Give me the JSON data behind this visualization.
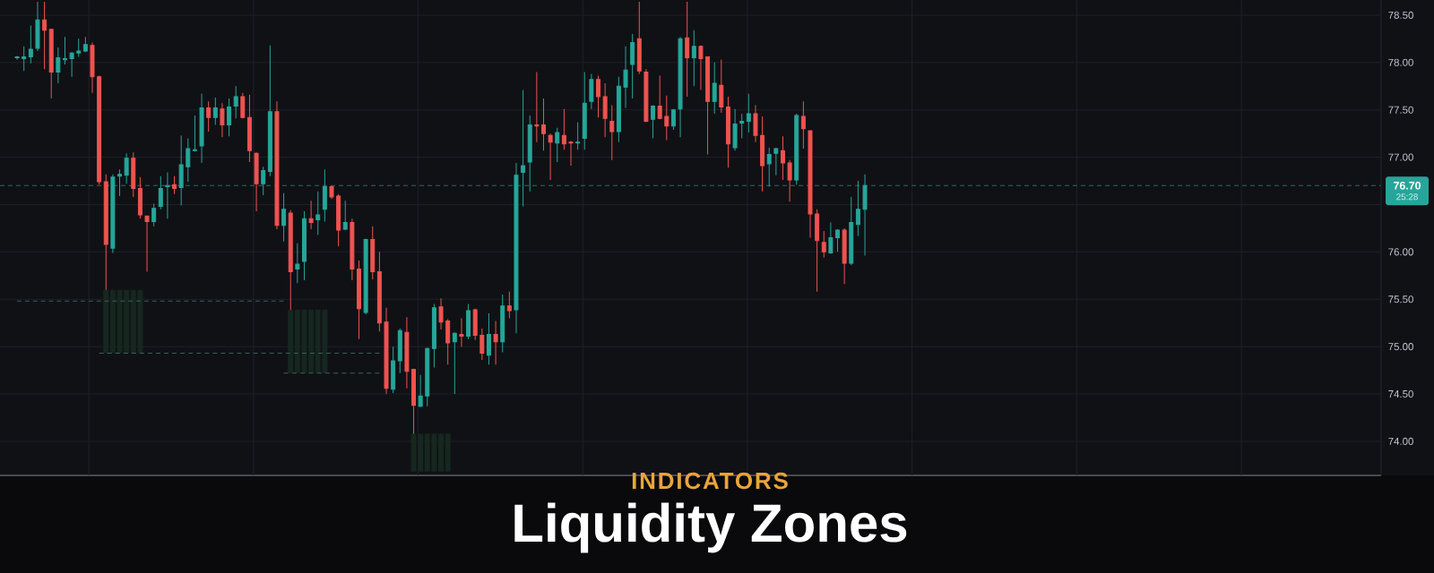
{
  "chart_data": {
    "type": "candlestick",
    "title": "Liquidity Zones",
    "subtitle": "INDICATORS",
    "categories": [
      null,
      null,
      null,
      null,
      null,
      null,
      null,
      null,
      null,
      null,
      null,
      null,
      null,
      null,
      null,
      null,
      null,
      null,
      null,
      null,
      null,
      null,
      null,
      null,
      null,
      null,
      null,
      null,
      null,
      null,
      null,
      null,
      null,
      null,
      null,
      null,
      null,
      null,
      null,
      null,
      null,
      null,
      null,
      null,
      null,
      null,
      null,
      null,
      null,
      null,
      null,
      null,
      null,
      null,
      null,
      null,
      null,
      null,
      null,
      null,
      null,
      null,
      null,
      null,
      null,
      null,
      null,
      null,
      null,
      null,
      null,
      null,
      null,
      null,
      null,
      null,
      null,
      null,
      null,
      null,
      null,
      null,
      null,
      null,
      null,
      null,
      null,
      null,
      null,
      null,
      null,
      null,
      null,
      null,
      null,
      null,
      null,
      null,
      null,
      null,
      null,
      null,
      null,
      null,
      null,
      null,
      null,
      null,
      null,
      null,
      null,
      null,
      null,
      null,
      null,
      null,
      null,
      null,
      null,
      null,
      null,
      null,
      null,
      null,
      null,
      null,
      null,
      null,
      null,
      null,
      null,
      null,
      null,
      null,
      null,
      null,
      null,
      null,
      null,
      null,
      null,
      null,
      null,
      null,
      null,
      null,
      null,
      null,
      null,
      null,
      null,
      null,
      null,
      null,
      null,
      null,
      null,
      null,
      null,
      null,
      null,
      null,
      null,
      null,
      null,
      null,
      null,
      null,
      null,
      null,
      null,
      null,
      null,
      null,
      null,
      null,
      null,
      null,
      null,
      null,
      null,
      null,
      null,
      null,
      null,
      null,
      null,
      null,
      null,
      null,
      null,
      null,
      null,
      null,
      null,
      null,
      null,
      null,
      null,
      null,
      null,
      null
    ],
    "ohlc": [
      null,
      null,
      [
        78.05,
        78.07,
        78.03,
        78.06
      ],
      [
        78.04,
        78.17,
        77.91,
        78.06
      ],
      [
        78.06,
        78.39,
        77.99,
        78.14
      ],
      [
        78.15,
        78.64,
        78.12,
        78.45
      ],
      [
        78.45,
        78.64,
        77.93,
        78.34
      ],
      [
        78.35,
        78.35,
        77.62,
        77.9
      ],
      [
        77.9,
        78.16,
        77.78,
        78.05
      ],
      [
        78.03,
        78.27,
        77.98,
        78.04
      ],
      [
        78.04,
        78.11,
        77.85,
        78.1
      ],
      [
        78.1,
        78.25,
        78.06,
        78.12
      ],
      [
        78.12,
        78.27,
        78.11,
        78.19
      ],
      [
        78.18,
        78.21,
        77.68,
        77.85
      ],
      [
        77.85,
        77.86,
        76.71,
        76.74
      ],
      [
        76.74,
        76.82,
        75.6,
        76.08
      ],
      [
        76.04,
        76.82,
        75.99,
        76.79
      ],
      [
        76.8,
        76.87,
        76.59,
        76.82
      ],
      [
        76.81,
        77.04,
        76.72,
        76.99
      ],
      [
        76.99,
        77.05,
        76.58,
        76.67
      ],
      [
        76.67,
        76.79,
        76.35,
        76.39
      ],
      [
        76.38,
        76.38,
        75.79,
        76.32
      ],
      [
        76.32,
        76.51,
        76.27,
        76.46
      ],
      [
        76.48,
        76.8,
        76.45,
        76.67
      ],
      [
        76.69,
        76.84,
        76.35,
        76.7
      ],
      [
        76.71,
        76.8,
        76.61,
        76.67
      ],
      [
        76.68,
        77.23,
        76.49,
        76.92
      ],
      [
        76.9,
        77.2,
        76.74,
        77.09
      ],
      [
        77.07,
        77.44,
        77.06,
        77.08
      ],
      [
        77.12,
        77.67,
        76.94,
        77.52
      ],
      [
        77.52,
        77.59,
        77.27,
        77.42
      ],
      [
        77.42,
        77.63,
        77.34,
        77.52
      ],
      [
        77.51,
        77.57,
        77.21,
        77.34
      ],
      [
        77.34,
        77.62,
        77.22,
        77.53
      ],
      [
        77.54,
        77.75,
        77.41,
        77.64
      ],
      [
        77.64,
        77.68,
        77.41,
        77.42
      ],
      [
        77.42,
        77.66,
        76.95,
        77.07
      ],
      [
        77.04,
        77.05,
        76.43,
        76.72
      ],
      [
        76.72,
        76.9,
        76.6,
        76.86
      ],
      [
        76.85,
        78.18,
        76.8,
        77.48
      ],
      [
        77.48,
        77.59,
        76.24,
        76.28
      ],
      [
        76.28,
        76.62,
        76.11,
        76.45
      ],
      [
        76.41,
        76.44,
        75.39,
        75.79
      ],
      [
        75.82,
        76.09,
        75.67,
        75.87
      ],
      [
        75.9,
        76.43,
        75.7,
        76.35
      ],
      [
        76.35,
        76.54,
        76.24,
        76.31
      ],
      [
        76.34,
        76.64,
        76.18,
        76.39
      ],
      [
        76.45,
        76.87,
        76.32,
        76.69
      ],
      [
        76.69,
        76.7,
        76.56,
        76.58
      ],
      [
        76.59,
        76.61,
        76.06,
        76.23
      ],
      [
        76.24,
        76.54,
        76.23,
        76.31
      ],
      [
        76.31,
        76.35,
        75.7,
        75.82
      ],
      [
        75.82,
        75.91,
        75.08,
        75.4
      ],
      [
        75.36,
        76.14,
        75.34,
        76.13
      ],
      [
        76.13,
        76.27,
        75.71,
        75.79
      ],
      [
        75.79,
        76.0,
        75.16,
        75.25
      ],
      [
        75.26,
        75.41,
        74.5,
        74.56
      ],
      [
        74.55,
        75.0,
        74.51,
        74.85
      ],
      [
        74.85,
        75.19,
        74.72,
        75.17
      ],
      [
        75.15,
        75.31,
        74.56,
        74.74
      ],
      [
        74.76,
        74.76,
        74.08,
        74.38
      ],
      [
        74.37,
        74.7,
        74.36,
        74.48
      ],
      [
        74.48,
        74.99,
        74.37,
        74.98
      ],
      [
        74.98,
        75.45,
        74.78,
        75.41
      ],
      [
        75.42,
        75.51,
        75.18,
        75.26
      ],
      [
        75.27,
        75.29,
        74.81,
        75.04
      ],
      [
        75.05,
        75.15,
        74.5,
        75.14
      ],
      [
        75.13,
        75.3,
        75.0,
        75.11
      ],
      [
        75.11,
        75.45,
        75.08,
        75.38
      ],
      [
        75.39,
        75.4,
        75.07,
        75.12
      ],
      [
        75.12,
        75.19,
        74.86,
        74.93
      ],
      [
        74.91,
        75.35,
        74.81,
        75.13
      ],
      [
        75.13,
        75.27,
        74.81,
        75.05
      ],
      [
        75.05,
        75.55,
        74.94,
        75.43
      ],
      [
        75.43,
        75.58,
        75.3,
        75.38
      ],
      [
        75.39,
        76.94,
        75.14,
        76.81
      ],
      [
        76.84,
        77.71,
        76.48,
        76.91
      ],
      [
        76.95,
        77.44,
        76.64,
        77.34
      ],
      [
        77.34,
        77.9,
        77.16,
        77.33
      ],
      [
        77.34,
        77.62,
        77.07,
        77.25
      ],
      [
        77.23,
        77.25,
        76.76,
        77.16
      ],
      [
        77.15,
        77.31,
        76.95,
        77.26
      ],
      [
        77.23,
        77.51,
        77.08,
        77.14
      ],
      [
        77.16,
        77.17,
        76.91,
        77.15
      ],
      [
        77.15,
        77.37,
        77.08,
        77.16
      ],
      [
        77.2,
        77.9,
        77.08,
        77.57
      ],
      [
        77.59,
        77.88,
        77.51,
        77.82
      ],
      [
        77.82,
        77.86,
        77.42,
        77.64
      ],
      [
        77.64,
        77.78,
        77.21,
        77.41
      ],
      [
        77.38,
        77.55,
        76.97,
        77.27
      ],
      [
        77.27,
        77.85,
        77.16,
        77.75
      ],
      [
        77.74,
        78.17,
        77.52,
        77.92
      ],
      [
        77.98,
        78.3,
        77.62,
        78.21
      ],
      [
        78.25,
        78.64,
        77.88,
        77.91
      ],
      [
        77.9,
        77.93,
        77.37,
        77.38
      ],
      [
        77.4,
        77.55,
        77.2,
        77.54
      ],
      [
        77.54,
        77.86,
        77.4,
        77.41
      ],
      [
        77.43,
        77.65,
        77.18,
        77.33
      ],
      [
        77.33,
        77.51,
        77.29,
        77.5
      ],
      [
        77.51,
        78.27,
        77.21,
        78.25
      ],
      [
        78.26,
        78.64,
        77.64,
        78.05
      ],
      [
        78.05,
        78.34,
        77.75,
        78.17
      ],
      [
        78.17,
        78.18,
        77.71,
        78.04
      ],
      [
        78.06,
        78.06,
        77.03,
        77.59
      ],
      [
        77.59,
        78.0,
        77.46,
        77.78
      ],
      [
        77.76,
        78.03,
        77.47,
        77.53
      ],
      [
        77.53,
        77.64,
        76.89,
        77.14
      ],
      [
        77.1,
        77.51,
        77.07,
        77.35
      ],
      [
        77.36,
        77.46,
        77.2,
        77.38
      ],
      [
        77.38,
        77.67,
        77.26,
        77.46
      ],
      [
        77.46,
        77.55,
        77.16,
        77.23
      ],
      [
        77.23,
        77.43,
        76.64,
        76.91
      ],
      [
        76.93,
        77.1,
        76.69,
        77.03
      ],
      [
        77.04,
        77.1,
        76.81,
        77.09
      ],
      [
        77.07,
        77.22,
        76.76,
        76.94
      ],
      [
        76.94,
        76.97,
        76.53,
        76.76
      ],
      [
        76.76,
        77.46,
        76.71,
        77.44
      ],
      [
        77.43,
        77.59,
        77.09,
        77.3
      ],
      [
        77.28,
        77.28,
        76.15,
        76.4
      ],
      [
        76.4,
        76.45,
        75.58,
        76.12
      ],
      [
        76.1,
        76.22,
        75.94,
        76.0
      ],
      [
        75.99,
        76.31,
        75.98,
        76.15
      ],
      [
        76.15,
        76.24,
        76.0,
        76.23
      ],
      [
        76.23,
        76.25,
        75.66,
        75.88
      ],
      [
        75.88,
        76.58,
        75.86,
        76.31
      ],
      [
        76.29,
        76.75,
        76.17,
        76.45
      ],
      [
        76.45,
        76.82,
        75.96,
        76.7
      ],
      null,
      null,
      null,
      null,
      null,
      null,
      null,
      null,
      null,
      null,
      null,
      null,
      null,
      null,
      null,
      null,
      null,
      null,
      null,
      null,
      null,
      null,
      null,
      null,
      null,
      null,
      null,
      null,
      null,
      null,
      null,
      null,
      null,
      null,
      null,
      null,
      null,
      null,
      null,
      null,
      null,
      null,
      null,
      null,
      null,
      null,
      null,
      null,
      null,
      null,
      null,
      null,
      null,
      null,
      null,
      null,
      null,
      null,
      null,
      null,
      null,
      null,
      null,
      null,
      null,
      null,
      null,
      null,
      null,
      null,
      null,
      null,
      null,
      null,
      null
    ],
    "colors": [
      null,
      null,
      "#26a69a",
      "#26a69a",
      "#26a69a",
      "#26a69a",
      "#ef5350",
      "#ef5350",
      "#26a69a",
      "#26a69a",
      "#26a69a",
      "#26a69a",
      "#26a69a",
      "#ef5350",
      "#ef5350",
      "#ef5350",
      "#26a69a",
      "#26a69a",
      "#26a69a",
      "#ef5350",
      "#ef5350",
      "#ef5350",
      "#26a69a",
      "#26a69a",
      "#26a69a",
      "#ef5350",
      "#26a69a",
      "#26a69a",
      "#26a69a",
      "#26a69a",
      "#ef5350",
      "#26a69a",
      "#ef5350",
      "#26a69a",
      "#26a69a",
      "#ef5350",
      "#ef5350",
      "#ef5350",
      "#26a69a",
      "#26a69a",
      "#ef5350",
      "#26a69a",
      "#ef5350",
      "#26a69a",
      "#26a69a",
      "#ef5350",
      "#26a69a",
      "#26a69a",
      "#ef5350",
      "#ef5350",
      "#26a69a",
      "#ef5350",
      "#ef5350",
      "#26a69a",
      "#ef5350",
      "#ef5350",
      "#ef5350",
      "#26a69a",
      "#26a69a",
      "#ef5350",
      "#ef5350",
      "#26a69a",
      "#26a69a",
      "#26a69a",
      "#ef5350",
      "#ef5350",
      "#26a69a",
      "#ef5350",
      "#26a69a",
      "#ef5350",
      "#ef5350",
      "#26a69a",
      "#ef5350",
      "#26a69a",
      "#ef5350",
      "#26a69a",
      "#26a69a",
      "#26a69a",
      "#ef5350",
      "#ef5350",
      "#ef5350",
      "#26a69a",
      "#ef5350",
      "#ef5350",
      "#26a69a",
      "#26a69a",
      "#26a69a",
      "#ef5350",
      "#ef5350",
      "#ef5350",
      "#26a69a",
      "#26a69a",
      "#26a69a",
      "#ef5350",
      "#ef5350",
      "#26a69a",
      "#ef5350",
      "#ef5350",
      "#26a69a",
      "#26a69a",
      "#ef5350",
      "#26a69a",
      "#ef5350",
      "#ef5350",
      "#26a69a",
      "#ef5350",
      "#ef5350",
      "#26a69a",
      "#26a69a",
      "#26a69a",
      "#ef5350",
      "#ef5350",
      "#26a69a",
      "#26a69a",
      "#ef5350",
      "#ef5350",
      "#26a69a",
      "#ef5350",
      "#ef5350",
      "#ef5350",
      "#ef5350",
      "#26a69a",
      "#26a69a",
      "#ef5350",
      "#26a69a",
      "#26a69a",
      "#26a69a",
      null,
      null,
      null,
      null,
      null,
      null,
      null,
      null,
      null,
      null,
      null,
      null,
      null,
      null,
      null,
      null,
      null,
      null,
      null,
      null,
      null,
      null,
      null,
      null,
      null,
      null,
      null,
      null,
      null,
      null,
      null,
      null,
      null,
      null,
      null,
      null,
      null,
      null,
      null,
      null,
      null,
      null,
      null,
      null,
      null,
      null,
      null,
      null,
      null,
      null,
      null,
      null,
      null,
      null,
      null,
      null,
      null,
      null,
      null,
      null,
      null,
      null,
      null,
      null,
      null,
      null,
      null,
      null,
      null,
      null,
      null,
      null,
      null,
      null,
      null
    ],
    "series": [
      {
        "type": "bar",
        "color": "#15271f",
        "values": [
          null,
          null,
          null,
          null,
          null,
          null,
          null,
          null,
          null,
          null,
          null,
          null,
          null,
          null,
          null,
          0.67,
          0.67,
          0.67,
          0.67,
          0.67,
          0.67,
          null,
          null,
          null,
          null,
          null,
          null,
          null,
          null,
          null,
          null,
          null,
          null,
          null,
          null,
          null,
          null,
          null,
          null,
          null,
          null,
          null,
          0.67,
          0.67,
          0.67,
          0.67,
          0.67,
          0.67,
          null,
          null,
          null,
          null,
          null,
          null,
          null,
          null,
          null,
          null,
          null,
          null,
          0.4,
          0.4,
          0.4,
          0.4,
          0.4,
          0.4,
          null,
          null,
          null,
          null,
          null,
          null,
          null,
          null,
          null,
          null,
          null,
          null,
          null,
          null,
          null,
          null,
          null,
          null,
          null,
          null,
          null,
          null,
          null,
          null,
          null,
          null,
          null,
          null,
          null,
          null,
          null,
          null,
          null,
          null,
          null,
          null,
          null,
          null,
          null,
          null,
          null,
          null,
          null,
          null,
          null,
          null,
          null,
          null,
          null,
          null,
          null,
          null,
          null,
          null,
          null,
          null,
          null,
          null,
          null,
          null,
          null,
          null,
          null,
          null,
          null,
          null,
          null,
          null,
          null,
          null,
          null,
          null,
          null,
          null,
          null,
          null,
          null,
          null,
          null,
          null,
          null,
          null,
          null,
          null,
          null,
          null,
          null,
          null,
          null,
          null,
          null,
          null,
          null,
          null,
          null,
          null,
          null,
          null,
          null,
          null,
          null,
          null,
          null,
          null,
          null,
          null,
          null,
          null,
          null,
          null,
          null,
          null,
          null,
          null,
          null,
          null,
          null,
          null,
          null,
          null,
          null,
          null,
          null,
          null,
          null,
          null,
          null,
          null,
          null,
          null,
          null,
          null,
          null,
          null,
          null,
          null
        ],
        "base": [
          null,
          null,
          null,
          null,
          null,
          null,
          null,
          null,
          null,
          null,
          null,
          null,
          null,
          null,
          null,
          74.93,
          74.93,
          74.93,
          74.93,
          74.93,
          74.93,
          null,
          null,
          null,
          null,
          null,
          null,
          null,
          null,
          null,
          null,
          null,
          null,
          null,
          null,
          null,
          null,
          null,
          null,
          null,
          null,
          null,
          74.72,
          74.72,
          74.72,
          74.72,
          74.72,
          74.72,
          null,
          null,
          null,
          null,
          null,
          null,
          null,
          null,
          null,
          null,
          null,
          null,
          73.68,
          73.68,
          73.68,
          73.68,
          73.68,
          73.68,
          null,
          null,
          null,
          null,
          null,
          null,
          null,
          null,
          null,
          null,
          null,
          null,
          null,
          null,
          null,
          null,
          null,
          null,
          null,
          null,
          null,
          null,
          null,
          null,
          null,
          null,
          null,
          null,
          null,
          null,
          null,
          null,
          null,
          null,
          null,
          null,
          null,
          null,
          null,
          null,
          null,
          null,
          null,
          null,
          null,
          null,
          null,
          null,
          null,
          null,
          null,
          null,
          null,
          null,
          null,
          null,
          null,
          null,
          null,
          null,
          null,
          null,
          null,
          null,
          null,
          null,
          null,
          null,
          null,
          null,
          null,
          null,
          null,
          null,
          null,
          null,
          null,
          null,
          null,
          null,
          null,
          null,
          null,
          null,
          null,
          null,
          null,
          null,
          null,
          null,
          null,
          null,
          null,
          null,
          null,
          null,
          null,
          null,
          null,
          null,
          null,
          null,
          null,
          null,
          null,
          null,
          null,
          null,
          null,
          null,
          null,
          null,
          null,
          null,
          null,
          null,
          null,
          null,
          null,
          null,
          null,
          null,
          null,
          null,
          null,
          null,
          null,
          null,
          null,
          null,
          null,
          null,
          null,
          null,
          null,
          null
        ]
      },
      {
        "type": "line",
        "color": "#3d5f5a",
        "line_style": "dashed",
        "values": [
          null,
          null,
          75.48,
          75.48,
          75.48,
          75.48,
          75.48,
          75.48,
          75.48,
          75.48,
          75.48,
          75.48,
          75.48,
          75.48,
          75.48,
          75.48,
          75.48,
          75.48,
          75.48,
          75.48,
          75.48,
          75.48,
          75.48,
          75.48,
          75.48,
          75.48,
          75.48,
          75.48,
          75.48,
          75.48,
          75.48,
          75.48,
          75.48,
          75.48,
          75.48,
          75.48,
          75.48,
          75.48,
          75.48,
          75.48,
          75.48,
          75.48,
          null,
          null,
          null,
          null,
          null,
          null,
          null,
          null,
          null,
          null,
          null,
          null,
          null,
          null,
          null,
          null,
          null,
          null,
          null,
          null,
          null,
          null,
          null,
          null,
          null,
          null,
          null,
          null,
          null,
          null,
          null,
          null,
          null,
          null,
          null,
          null,
          null,
          null,
          null,
          null,
          null,
          null,
          null,
          null,
          null,
          null,
          null,
          null,
          null,
          null,
          null,
          null,
          null,
          null,
          null,
          null,
          null,
          null,
          null,
          null,
          null,
          null,
          null,
          null,
          null,
          null,
          null,
          null,
          null,
          null,
          null,
          null,
          null,
          null,
          null,
          null,
          null,
          null,
          null,
          null,
          null,
          null,
          null,
          null,
          null,
          null,
          null,
          null,
          null,
          null,
          null,
          null,
          null,
          null,
          null,
          null,
          null,
          null,
          null,
          null,
          null,
          null,
          null,
          null,
          null,
          null,
          null,
          null,
          null,
          null,
          null,
          null,
          null,
          null,
          null,
          null,
          null,
          null,
          null,
          null,
          null,
          null,
          null,
          null,
          null,
          null,
          null,
          null,
          null,
          null,
          null,
          null,
          null,
          null,
          null,
          null,
          null,
          null,
          null,
          null,
          null,
          null,
          null,
          null,
          null,
          null,
          null,
          null,
          null,
          null,
          null,
          null,
          null,
          null,
          null,
          null,
          null,
          null,
          null,
          null
        ]
      },
      {
        "type": "line",
        "color": "#3d5f5a",
        "line_style": "dashed",
        "values": [
          null,
          null,
          null,
          null,
          null,
          null,
          null,
          null,
          null,
          null,
          null,
          null,
          null,
          null,
          74.93,
          74.93,
          74.93,
          74.93,
          74.93,
          74.93,
          74.93,
          74.93,
          74.93,
          74.93,
          74.93,
          74.93,
          74.93,
          74.93,
          74.93,
          74.93,
          74.93,
          74.93,
          74.93,
          74.93,
          74.93,
          74.93,
          74.93,
          74.93,
          74.93,
          74.93,
          74.93,
          74.93,
          74.93,
          74.93,
          74.93,
          74.93,
          74.93,
          74.93,
          74.93,
          74.93,
          74.93,
          74.93,
          74.93,
          74.93,
          74.93,
          74.93,
          null,
          null,
          null,
          null,
          null,
          null,
          null,
          null,
          null,
          null,
          null,
          null,
          null,
          null,
          null,
          null,
          null,
          null,
          null,
          null,
          null,
          null,
          null,
          null,
          null,
          null,
          null,
          null,
          null,
          null,
          null,
          null,
          null,
          null,
          null,
          null,
          null,
          null,
          null,
          null,
          null,
          null,
          null,
          null,
          null,
          null,
          null,
          null,
          null,
          null,
          null,
          null,
          null,
          null,
          null,
          null,
          null,
          null,
          null,
          null,
          null,
          null,
          null,
          null,
          null,
          null,
          null,
          null,
          null,
          null,
          null,
          null,
          null,
          null,
          null,
          null,
          null,
          null,
          null,
          null,
          null,
          null,
          null,
          null,
          null,
          null,
          null,
          null,
          null,
          null,
          null,
          null,
          null,
          null,
          null,
          null,
          null,
          null,
          null,
          null,
          null,
          null,
          null,
          null,
          null,
          null,
          null,
          null,
          null,
          null,
          null,
          null,
          null,
          null,
          null,
          null,
          null,
          null,
          null,
          null,
          null,
          null,
          null,
          null,
          null,
          null,
          null,
          null,
          null,
          null,
          null,
          null,
          null,
          null,
          null,
          null,
          null,
          null,
          null,
          null,
          null,
          null,
          null,
          null,
          null,
          null
        ]
      },
      {
        "type": "line",
        "color": "#3d5f5a",
        "line_style": "dashed",
        "values": [
          null,
          null,
          null,
          null,
          null,
          null,
          null,
          null,
          null,
          null,
          null,
          null,
          null,
          null,
          null,
          null,
          null,
          null,
          null,
          null,
          null,
          null,
          null,
          null,
          null,
          null,
          null,
          null,
          null,
          null,
          null,
          null,
          null,
          null,
          null,
          null,
          null,
          null,
          null,
          null,
          null,
          74.72,
          74.72,
          74.72,
          74.72,
          74.72,
          74.72,
          74.72,
          74.72,
          74.72,
          74.72,
          74.72,
          74.72,
          74.72,
          74.72,
          74.72,
          null,
          null,
          null,
          null,
          null,
          null,
          null,
          null,
          null,
          null,
          null,
          null,
          null,
          null,
          null,
          null,
          null,
          null,
          null,
          null,
          null,
          null,
          null,
          null,
          null,
          null,
          null,
          null,
          null,
          null,
          null,
          null,
          null,
          null,
          null,
          null,
          null,
          null,
          null,
          null,
          null,
          null,
          null,
          null,
          null,
          null,
          null,
          null,
          null,
          null,
          null,
          null,
          null,
          null,
          null,
          null,
          null,
          null,
          null,
          null,
          null,
          null,
          null,
          null,
          null,
          null,
          null,
          null,
          null,
          null,
          null,
          null,
          null,
          null,
          null,
          null,
          null,
          null,
          null,
          null,
          null,
          null,
          null,
          null,
          null,
          null,
          null,
          null,
          null,
          null,
          null,
          null,
          null,
          null,
          null,
          null,
          null,
          null,
          null,
          null,
          null,
          null,
          null,
          null,
          null,
          null,
          null,
          null,
          null,
          null,
          null,
          null,
          null,
          null,
          null,
          null,
          null,
          null,
          null,
          null,
          null,
          null,
          null,
          null,
          null,
          null,
          null,
          null,
          null,
          null,
          null,
          null,
          null,
          null,
          null,
          null,
          null,
          null,
          null,
          null,
          null,
          null,
          null,
          null,
          null,
          null
        ]
      }
    ],
    "ylim": [
      73.64,
      78.66
    ],
    "yticks": [
      {
        "value": 74,
        "label": "74.00"
      },
      {
        "value": 74.5,
        "label": "74.50"
      },
      {
        "value": 75,
        "label": "75.00"
      },
      {
        "value": 75.5,
        "label": "75.50"
      },
      {
        "value": 76,
        "label": "76.00"
      },
      {
        "value": 76.5,
        "label": null
      },
      {
        "value": 77,
        "label": "77.00"
      },
      {
        "value": 77.5,
        "label": "77.50"
      },
      {
        "value": 78,
        "label": "78.00"
      },
      {
        "value": 78.5,
        "label": "78.50"
      }
    ],
    "grid": true,
    "tick_labels": "y",
    "ref_lines": [
      {
        "axis": "y",
        "value": 76.7,
        "label": "76.70",
        "color": "#1f7068",
        "line_style": "dashed"
      }
    ],
    "annotations": [
      "25:28"
    ]
  }
}
